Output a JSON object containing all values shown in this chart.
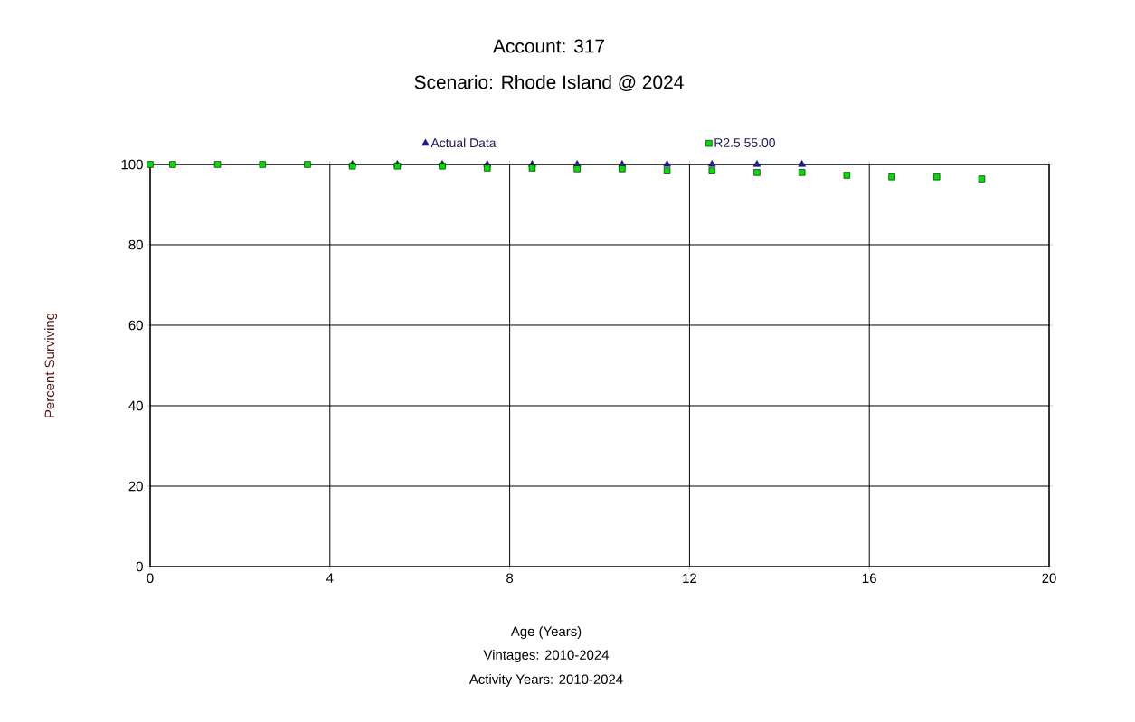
{
  "chart_data": {
    "type": "scatter",
    "title": "Account: 317",
    "subtitle": "Scenario: Rhode Island @ 2024",
    "xlabel": "Age (Years)",
    "ylabel": "Percent Surviving",
    "annotations": [
      "Vintages: 2010-2024",
      "Activity Years: 2010-2024"
    ],
    "xlim": [
      0,
      20
    ],
    "xticks": [
      0,
      4,
      8,
      12,
      16,
      20
    ],
    "ylim": [
      0,
      100
    ],
    "yticks": [
      0,
      20,
      40,
      60,
      80,
      100
    ],
    "grid": true,
    "legend": "top",
    "series": [
      {
        "name": "Actual Data",
        "color": "#1a1a80",
        "marker": "triangle",
        "x": [
          4.5,
          5.5,
          6.5,
          7.5,
          8.5,
          9.5,
          10.5,
          11.5,
          12.5,
          13.5,
          14.5
        ],
        "values": [
          100,
          100,
          100,
          100,
          100,
          100,
          100,
          100,
          100,
          100,
          100
        ]
      },
      {
        "name": "R2.5 55.00",
        "color": "#00e000",
        "marker": "square",
        "x": [
          0,
          0.5,
          1.5,
          2.5,
          3.5,
          4.5,
          5.5,
          6.5,
          7.5,
          8.5,
          9.5,
          10.5,
          11.5,
          12.5,
          13.5,
          14.5,
          15.5,
          16.5,
          17.5,
          18.5
        ],
        "values": [
          100,
          100,
          100,
          100,
          100,
          99.6,
          99.6,
          99.6,
          99.1,
          99.1,
          98.9,
          98.9,
          98.4,
          98.4,
          98.0,
          98.0,
          97.3,
          96.9,
          96.9,
          96.4
        ]
      }
    ]
  }
}
